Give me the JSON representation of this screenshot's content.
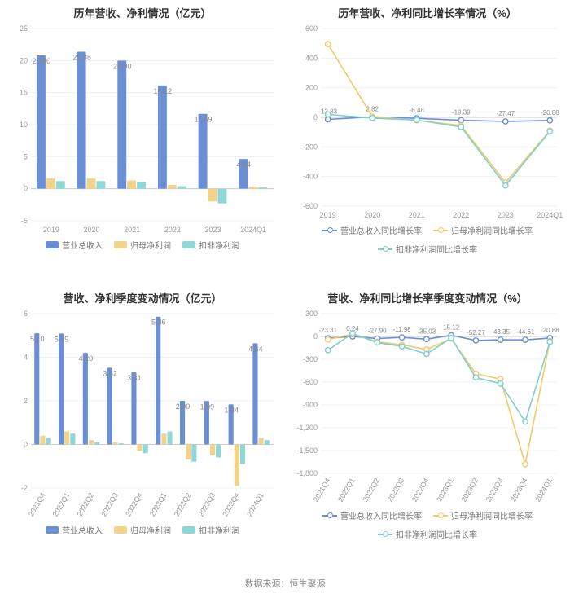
{
  "source_line": "数据来源：恒生聚源",
  "colors": {
    "bar_revenue": "#6b8fd4",
    "bar_profit1": "#f3d38a",
    "bar_profit2": "#8fd8d8",
    "line_revenue": "#6b8fd4",
    "line_profit1": "#f3c96a",
    "line_profit2": "#7ed0d0",
    "grid": "#f0f0f0",
    "axis": "#dddddd",
    "text_axis": "#999999",
    "text_title": "#333333",
    "bg": "#ffffff"
  },
  "panel1": {
    "title": "历年营收、净利情况（亿元）",
    "type": "bar",
    "categories": [
      "2019",
      "2020",
      "2021",
      "2022",
      "2023",
      "2024Q1"
    ],
    "ylim": [
      -5,
      25
    ],
    "ytick_step": 5,
    "series": [
      {
        "key": "revenue",
        "label": "营业总收入",
        "color": "#6b8fd4",
        "values": [
          20.8,
          21.38,
          20.0,
          16.12,
          11.69,
          4.64
        ],
        "show_labels": true
      },
      {
        "key": "profit1",
        "label": "归母净利润",
        "color": "#f3d38a",
        "values": [
          1.6,
          1.6,
          1.3,
          0.6,
          -2.0,
          0.3
        ],
        "show_labels": false
      },
      {
        "key": "profit2",
        "label": "扣非净利润",
        "color": "#8fd8d8",
        "values": [
          1.2,
          1.2,
          1.0,
          0.4,
          -2.3,
          0.2
        ],
        "show_labels": false
      }
    ],
    "legend_kind": "rect"
  },
  "panel2": {
    "title": "历年营收、净利同比增长率情况（%）",
    "type": "line",
    "categories": [
      "2019",
      "2020",
      "2021",
      "2022",
      "2023",
      "2024Q1"
    ],
    "ylim": [
      -600,
      600
    ],
    "ytick_step": 200,
    "series": [
      {
        "key": "revenue",
        "label": "营业总收入同比增长率",
        "color": "#6b8fd4",
        "values": [
          -13.83,
          2.82,
          -6.48,
          -19.39,
          -27.47,
          -20.88
        ],
        "show_labels": true,
        "label_above": true
      },
      {
        "key": "profit1",
        "label": "归母净利润同比增长率",
        "color": "#f3c96a",
        "values": [
          495,
          5,
          -20,
          -55,
          -440,
          -90
        ],
        "show_labels": false
      },
      {
        "key": "profit2",
        "label": "扣非净利润同比增长率",
        "color": "#7ed0d0",
        "values": [
          20,
          -5,
          -18,
          -65,
          -460,
          -95
        ],
        "show_labels": false
      }
    ],
    "legend_kind": "linemarker"
  },
  "panel3": {
    "title": "营收、净利季度变动情况（亿元）",
    "type": "bar",
    "categories": [
      "2021Q4",
      "2022Q1",
      "2022Q2",
      "2022Q3",
      "2022Q4",
      "2023Q1",
      "2023Q2",
      "2023Q3",
      "2023Q4",
      "2024Q1"
    ],
    "rotate_x": true,
    "ylim": [
      -2,
      6
    ],
    "ytick_step": 2,
    "series": [
      {
        "key": "revenue",
        "label": "营业总收入",
        "color": "#6b8fd4",
        "values": [
          5.1,
          5.09,
          4.2,
          3.52,
          3.31,
          5.86,
          2.0,
          1.99,
          1.84,
          4.64
        ],
        "show_labels": true
      },
      {
        "key": "profit1",
        "label": "归母净利润",
        "color": "#f3d38a",
        "values": [
          0.4,
          0.6,
          0.2,
          0.1,
          -0.3,
          0.5,
          -0.7,
          -0.5,
          -1.9,
          0.3
        ],
        "show_labels": false
      },
      {
        "key": "profit2",
        "label": "扣非净利润",
        "color": "#8fd8d8",
        "values": [
          0.3,
          0.5,
          0.1,
          0.05,
          -0.4,
          0.6,
          -0.8,
          -0.6,
          -0.9,
          0.2
        ],
        "show_labels": false
      }
    ],
    "legend_kind": "rect"
  },
  "panel4": {
    "title": "营收、净利同比增长率季度变动情况（%）",
    "type": "line",
    "categories": [
      "2021Q4",
      "2022Q1",
      "2022Q2",
      "2022Q3",
      "2022Q4",
      "2023Q1",
      "2023Q2",
      "2023Q3",
      "2023Q4",
      "2024Q1"
    ],
    "rotate_x": true,
    "ylim": [
      -1800,
      300
    ],
    "ytick_step": 300,
    "series": [
      {
        "key": "revenue",
        "label": "营业总收入同比增长率",
        "color": "#6b8fd4",
        "values": [
          -23.31,
          0.24,
          -27.9,
          -11.98,
          -35.03,
          15.12,
          -52.27,
          -43.35,
          -44.61,
          -20.88
        ],
        "show_labels": true,
        "label_above": true
      },
      {
        "key": "profit1",
        "label": "归母净利润同比增长率",
        "color": "#f3c96a",
        "values": [
          -40,
          30,
          -70,
          -110,
          -170,
          -30,
          -490,
          -560,
          -1680,
          -60
        ],
        "show_labels": false
      },
      {
        "key": "profit2",
        "label": "扣非净利润同比增长率",
        "color": "#7ed0d0",
        "values": [
          -180,
          40,
          -80,
          -130,
          -230,
          -20,
          -540,
          -620,
          -1120,
          -70
        ],
        "show_labels": false
      }
    ],
    "legend_kind": "linemarker"
  }
}
